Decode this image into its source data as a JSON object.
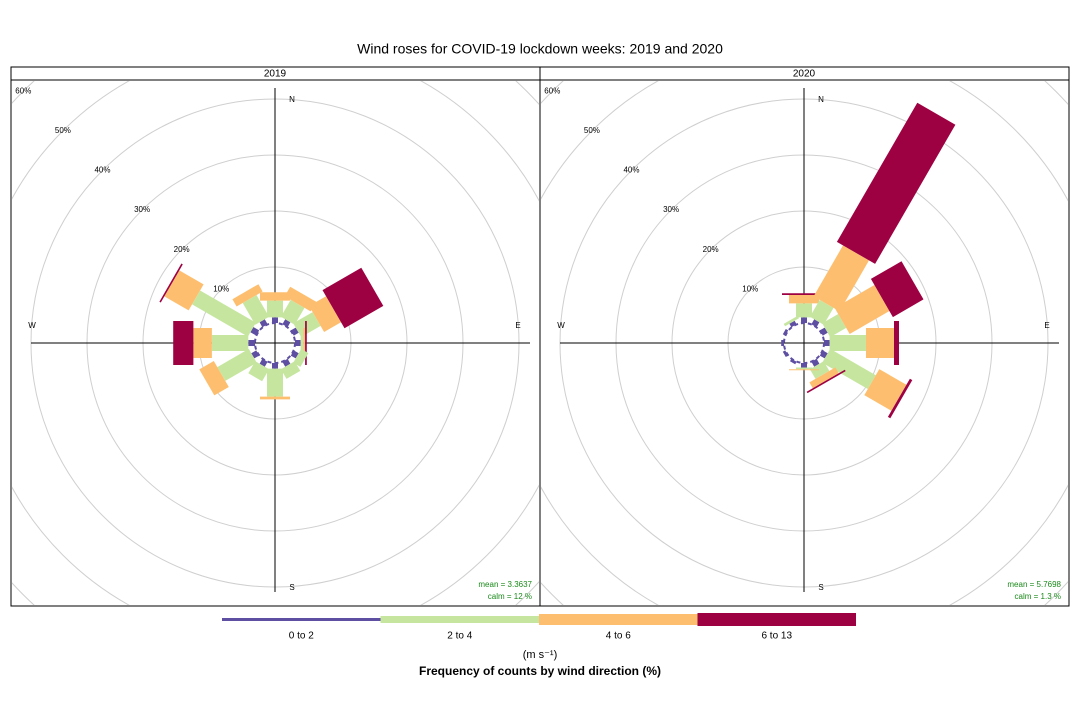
{
  "title": "Wind roses for COVID-19 lockdown weeks: 2019 and 2020",
  "chart_data": [
    {
      "type": "windrose",
      "title": "2019",
      "directions": [
        0,
        30,
        60,
        90,
        120,
        150,
        180,
        210,
        240,
        270,
        300,
        330
      ],
      "compass": [
        "N",
        "E",
        "S",
        "W"
      ],
      "series": [
        {
          "name": "0 to 2",
          "color": "#5e4fa2",
          "values": [
            1.0,
            1.0,
            1.0,
            1.0,
            1.0,
            1.0,
            1.0,
            1.0,
            1.0,
            1.2,
            1.2,
            1.0
          ]
        },
        {
          "name": "2 to 4",
          "color": "#c6e6a0",
          "values": [
            3.0,
            3.5,
            4.0,
            0.5,
            1.5,
            2.0,
            5.0,
            2.5,
            6.5,
            6.5,
            11.5,
            4.5
          ]
        },
        {
          "name": "4 to 6",
          "color": "#fdbf6f",
          "values": [
            1.5,
            2.0,
            3.5,
            0.3,
            0,
            0,
            0.5,
            0,
            3.0,
            3.3,
            5.0,
            1.5
          ]
        },
        {
          "name": "6 to 13",
          "color": "#9e0142",
          "values": [
            0,
            0,
            8.0,
            0.3,
            0,
            0,
            0,
            0,
            0,
            3.6,
            0.3,
            0
          ]
        }
      ],
      "rlim": [
        0,
        60
      ],
      "rticks": [
        {
          "value": 10,
          "label": "10%"
        },
        {
          "value": 20,
          "label": "20%"
        },
        {
          "value": 30,
          "label": "30%"
        },
        {
          "value": 40,
          "label": "40%"
        },
        {
          "value": 50,
          "label": "50%"
        },
        {
          "value": 60,
          "label": "60%"
        }
      ],
      "mean_label": "mean = 3.3637",
      "calm_label": "calm = 12 %"
    },
    {
      "type": "windrose",
      "title": "2020",
      "directions": [
        0,
        30,
        60,
        90,
        120,
        150,
        180,
        210,
        240,
        270,
        300,
        330
      ],
      "compass": [
        "N",
        "E",
        "S",
        "W"
      ],
      "series": [
        {
          "name": "0 to 2",
          "color": "#5e4fa2",
          "values": [
            1.0,
            1.0,
            1.0,
            1.0,
            1.0,
            1.0,
            0.8,
            0.5,
            0.5,
            0.5,
            0.5,
            0.7
          ]
        },
        {
          "name": "2 to 4",
          "color": "#c6e6a0",
          "values": [
            2.5,
            3.5,
            3.3,
            6.5,
            9.4,
            2.0,
            0.3,
            0,
            0,
            0,
            0,
            0.5
          ]
        },
        {
          "name": "4 to 6",
          "color": "#fdbf6f",
          "values": [
            1.5,
            10.5,
            8.2,
            5.0,
            5.6,
            1.2,
            0.2,
            0,
            0,
            0,
            0,
            0
          ]
        },
        {
          "name": "6 to 13",
          "color": "#9e0142",
          "values": [
            0.3,
            28.7,
            6.3,
            0.9,
            0.5,
            0.3,
            0,
            0,
            0,
            0,
            0,
            0
          ]
        }
      ],
      "rlim": [
        0,
        60
      ],
      "rticks": [
        {
          "value": 10,
          "label": "10%"
        },
        {
          "value": 20,
          "label": "20%"
        },
        {
          "value": 30,
          "label": "30%"
        },
        {
          "value": 40,
          "label": "40%"
        },
        {
          "value": 50,
          "label": "50%"
        },
        {
          "value": 60,
          "label": "60%"
        }
      ],
      "mean_label": "mean = 5.7698",
      "calm_label": "calm = 1.3 %"
    }
  ],
  "legend": {
    "units": "(m s⁻¹)",
    "title": "Frequency of counts by wind direction (%)"
  }
}
